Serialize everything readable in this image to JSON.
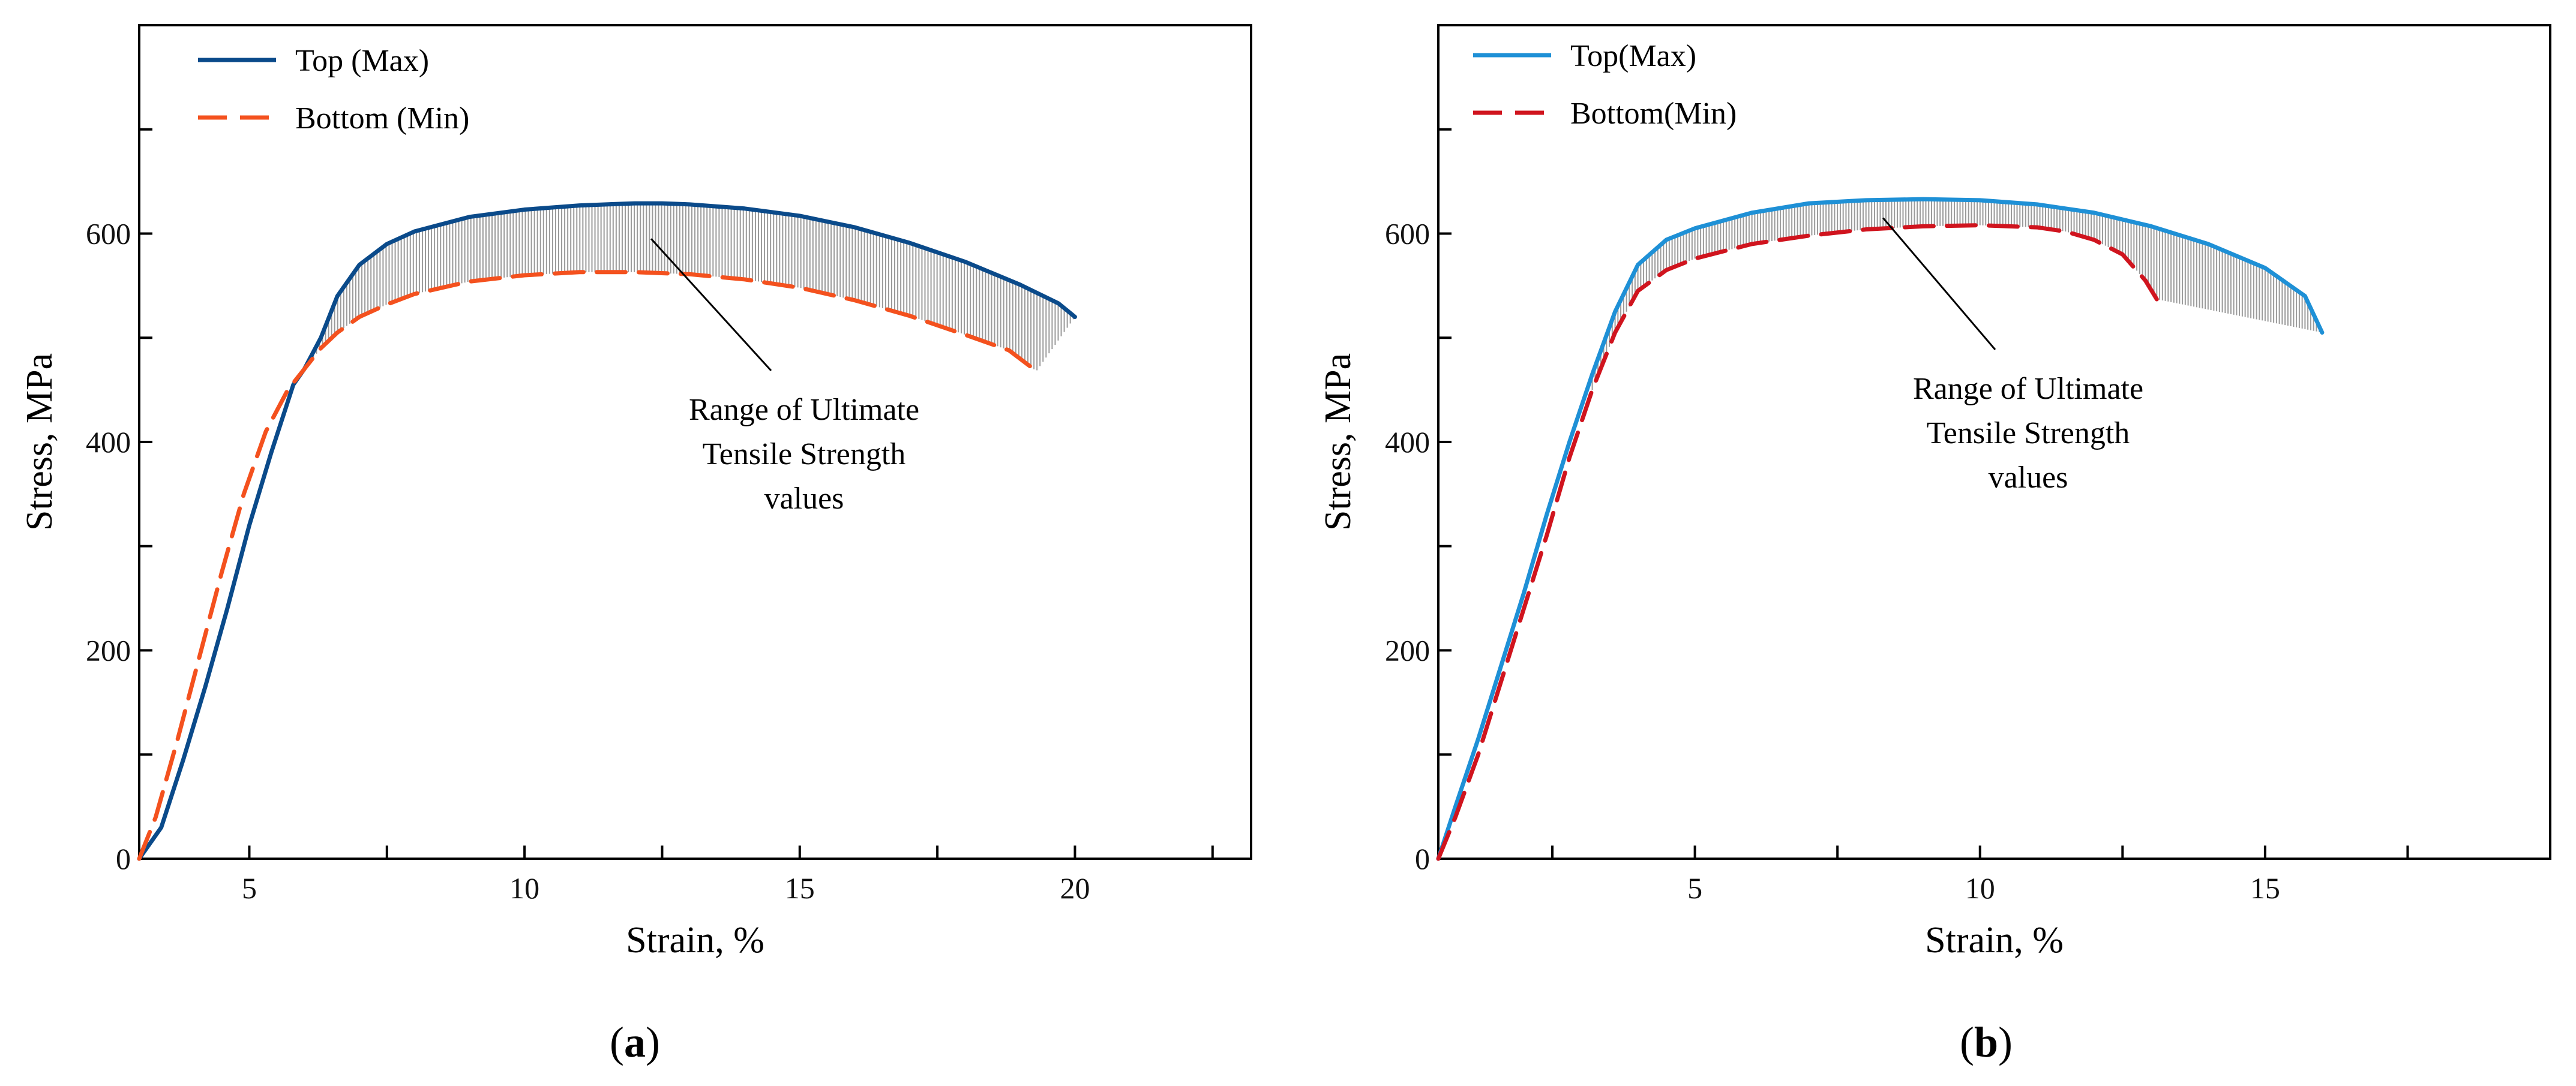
{
  "chart_data": [
    {
      "type": "line",
      "panel_label": "a",
      "xlabel": "Strain, %",
      "ylabel": "Stress, MPa",
      "xlim": [
        3,
        23.2
      ],
      "ylim": [
        0,
        800
      ],
      "xticks_labeled": [
        5,
        10,
        15,
        20
      ],
      "xticks_minor": [
        7.5,
        12.5,
        17.5,
        22.5
      ],
      "yticks_labeled": [
        0,
        200,
        400,
        600
      ],
      "yticks_minor": [
        100,
        300,
        500,
        700
      ],
      "annotation": [
        "Range of Ultimate",
        "Tensile Strength",
        "values"
      ],
      "annotation_target": [
        12.3,
        595
      ],
      "legend_position": "top-left",
      "series": [
        {
          "name": "Top (Max)",
          "name_main": "Top",
          "name_sub": "(Max)",
          "style": "solid",
          "color": "#0a4a8a",
          "x": [
            3.0,
            3.4,
            3.8,
            4.2,
            4.6,
            5.0,
            5.4,
            5.8,
            6.0,
            6.3,
            6.6,
            7.0,
            7.5,
            8.0,
            9.0,
            10.0,
            11.0,
            12.0,
            12.5,
            13.0,
            14.0,
            15.0,
            16.0,
            17.0,
            18.0,
            19.0,
            19.7,
            20.0
          ],
          "y": [
            0,
            30,
            95,
            165,
            240,
            320,
            390,
            455,
            470,
            500,
            540,
            570,
            590,
            602,
            616,
            623,
            627,
            629,
            629,
            628,
            624,
            617,
            606,
            591,
            573,
            551,
            533,
            520
          ]
        },
        {
          "name": "Bottom (Min)",
          "name_main": "Bottom",
          "name_sub": "(Min)",
          "style": "dashed",
          "color": "#f4511e",
          "x": [
            3.0,
            3.3,
            3.7,
            4.1,
            4.5,
            4.9,
            5.3,
            5.7,
            6.0,
            6.3,
            6.6,
            7.0,
            7.5,
            8.0,
            9.0,
            10.0,
            11.0,
            12.0,
            13.0,
            14.0,
            15.0,
            16.0,
            17.0,
            18.0,
            18.8,
            19.3
          ],
          "y": [
            0,
            40,
            115,
            195,
            275,
            350,
            410,
            450,
            470,
            490,
            505,
            520,
            532,
            542,
            554,
            560,
            563,
            563,
            561,
            556,
            548,
            536,
            521,
            503,
            488,
            468
          ]
        }
      ]
    },
    {
      "type": "line",
      "panel_label": "b",
      "xlabel": "Strain, %",
      "ylabel": "Stress, MPa",
      "xlim": [
        0.5,
        20
      ],
      "ylim": [
        0,
        800
      ],
      "xticks_labeled": [
        5,
        10,
        15
      ],
      "xticks_minor": [
        2.5,
        7.5,
        12.5,
        17.5
      ],
      "yticks_labeled": [
        0,
        200,
        400,
        600
      ],
      "yticks_minor": [
        100,
        300,
        500,
        700
      ],
      "annotation": [
        "Range of Ultimate",
        "Tensile Strength",
        "values"
      ],
      "annotation_target": [
        8.3,
        615
      ],
      "legend_position": "top-left",
      "series": [
        {
          "name": "Top(Max)",
          "name_main": "Top",
          "name_sub": "(Max)",
          "style": "solid",
          "color": "#1e90d6",
          "x": [
            0.5,
            0.8,
            1.2,
            1.6,
            2.0,
            2.4,
            2.8,
            3.2,
            3.6,
            4.0,
            4.5,
            5.0,
            6.0,
            7.0,
            8.0,
            9.0,
            10.0,
            11.0,
            12.0,
            13.0,
            14.0,
            15.0,
            15.7,
            16.0
          ],
          "y": [
            0,
            50,
            115,
            185,
            255,
            330,
            400,
            465,
            525,
            570,
            594,
            605,
            620,
            629,
            632,
            633,
            632,
            628,
            620,
            607,
            590,
            567,
            540,
            505
          ]
        },
        {
          "name": "Bottom(Min)",
          "name_main": "Bottom",
          "name_sub": "(Min)",
          "style": "dashed",
          "color": "#d0141e",
          "x": [
            0.5,
            0.8,
            1.2,
            1.6,
            2.0,
            2.4,
            2.8,
            3.2,
            3.6,
            4.0,
            4.5,
            5.0,
            6.0,
            7.0,
            8.0,
            9.0,
            10.0,
            11.0,
            11.5,
            12.0,
            12.5,
            12.9,
            13.1
          ],
          "y": [
            0,
            40,
            100,
            170,
            240,
            310,
            385,
            450,
            505,
            545,
            565,
            576,
            590,
            598,
            604,
            607,
            608,
            606,
            602,
            594,
            580,
            555,
            537
          ]
        }
      ]
    }
  ]
}
